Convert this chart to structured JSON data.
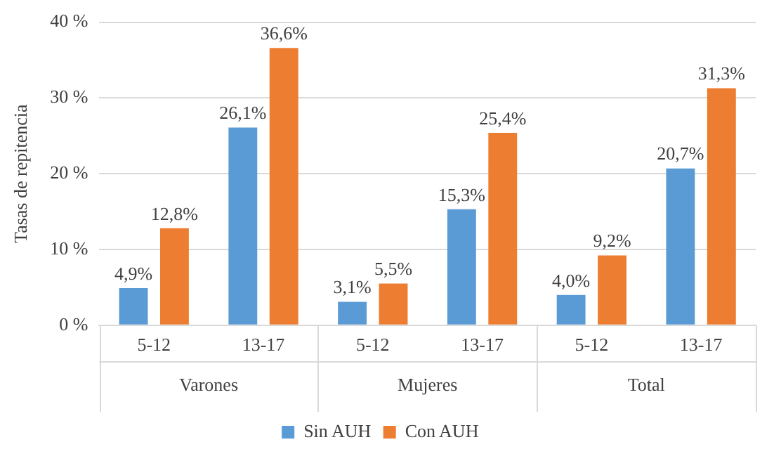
{
  "chart_data": {
    "type": "bar",
    "ylabel": "Tasas de repitencia",
    "categories": [
      "5-12",
      "13-17",
      "5-12",
      "13-17",
      "5-12",
      "13-17"
    ],
    "annotations": [
      "Varones",
      "Mujeres",
      "Total"
    ],
    "series": [
      {
        "name": "Sin AUH",
        "color": "#5b9bd5",
        "values": [
          4.9,
          26.1,
          3.1,
          15.3,
          4.0,
          20.7
        ],
        "value_labels": [
          "4,9%",
          "26,1%",
          "3,1%",
          "15,3%",
          "4,0%",
          "20,7%"
        ]
      },
      {
        "name": "Con AUH",
        "color": "#ed7d31",
        "values": [
          12.8,
          36.6,
          5.5,
          25.4,
          9.2,
          31.3
        ],
        "value_labels": [
          "12,8%",
          "36,6%",
          "5,5%",
          "25,4%",
          "9,2%",
          "31,3%"
        ]
      }
    ],
    "ylim": [
      0,
      40
    ],
    "yticks": [
      {
        "value": 0,
        "label": "0 %"
      },
      {
        "value": 10,
        "label": "10 %"
      },
      {
        "value": 20,
        "label": "20 %"
      },
      {
        "value": 30,
        "label": "30 %"
      },
      {
        "value": 40,
        "label": "40 %"
      }
    ],
    "grid": "y",
    "legend": "bottom"
  }
}
